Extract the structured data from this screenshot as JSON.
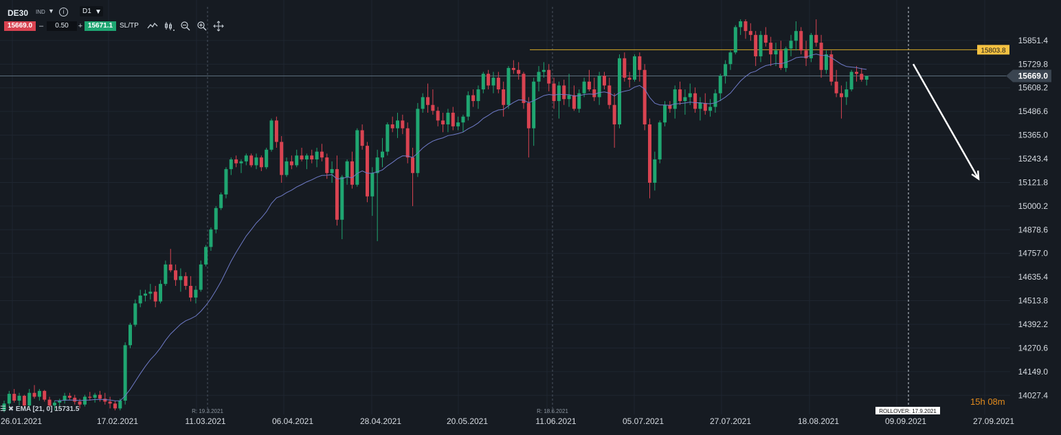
{
  "toolbar": {
    "symbol": "DE30",
    "symbol_type": "IND",
    "info_icon": "info-icon",
    "timeframe": "D1",
    "sell_price": "15669.0",
    "minus": "–",
    "spread": "0.50",
    "plus": "+",
    "buy_price": "15671.1",
    "sltp": "SL/TP",
    "tools": [
      "chart-type-icon",
      "bar-style-icon",
      "zoom-out-icon",
      "zoom-in-icon",
      "crosshair-move-icon"
    ]
  },
  "indicator": {
    "label": "EMA [21, 0] 15731.5",
    "icons": [
      "list-icon",
      "close-icon"
    ]
  },
  "timer": {
    "hours": "15h",
    "minutes": "08m"
  },
  "colors": {
    "bg": "#161b22",
    "up": "#1fa671",
    "down": "#d94351",
    "ema": "#6f7bc8",
    "resistance": "#d9ac2a",
    "price_line": "#5b6e7c"
  },
  "chart_data": {
    "type": "candlestick",
    "symbol": "DE30",
    "timeframe": "D1",
    "ylim": [
      13940,
      16010
    ],
    "y_ticks": [
      "15851.4",
      "15729.8",
      "15608.2",
      "15486.6",
      "15365.0",
      "15243.4",
      "15121.8",
      "15000.2",
      "14878.6",
      "14757.0",
      "14635.4",
      "14513.8",
      "14392.2",
      "14270.6",
      "14149.0",
      "14027.4"
    ],
    "x_ticks": [
      "26.01.2021",
      "17.02.2021",
      "11.03.2021",
      "06.04.2021",
      "28.04.2021",
      "20.05.2021",
      "11.06.2021",
      "05.07.2021",
      "27.07.2021",
      "18.08.2021",
      "09.09.2021",
      "27.09.2021"
    ],
    "current_price": "15669.0",
    "resistance_level": "15803.8",
    "vertical_markers": [
      {
        "label": "R: 19.3.2021",
        "style": "dashed"
      },
      {
        "label": "R: 18.6.2021",
        "style": "dashed"
      },
      {
        "label": "ROLLOVER: 17.9.2021",
        "style": "dashed-white"
      }
    ],
    "annotation": {
      "type": "arrow",
      "direction": "down",
      "from_price": 15730,
      "to_price": 15140
    },
    "ema_period": 21,
    "ema_last": 15731.5,
    "candles": [
      [
        13950,
        14000,
        13940,
        13985
      ],
      [
        13985,
        14050,
        13970,
        14035
      ],
      [
        14035,
        14060,
        13990,
        14000
      ],
      [
        14000,
        14040,
        13975,
        14025
      ],
      [
        14025,
        14030,
        13960,
        13975
      ],
      [
        13975,
        14060,
        13965,
        14040
      ],
      [
        14040,
        14080,
        14010,
        14020
      ],
      [
        14020,
        14060,
        14000,
        14050
      ],
      [
        14050,
        14055,
        13995,
        14005
      ],
      [
        14005,
        14020,
        13960,
        13975
      ],
      [
        13975,
        14000,
        13950,
        13990
      ],
      [
        13990,
        14010,
        13970,
        14000
      ],
      [
        14000,
        14040,
        13985,
        14025
      ],
      [
        14025,
        14040,
        14005,
        14015
      ],
      [
        14015,
        14030,
        13980,
        13995
      ],
      [
        13995,
        14010,
        13960,
        13980
      ],
      [
        13980,
        14030,
        13970,
        14020
      ],
      [
        14020,
        14045,
        14000,
        14015
      ],
      [
        14015,
        14040,
        13990,
        14030
      ],
      [
        14030,
        14050,
        13995,
        14010
      ],
      [
        14010,
        14040,
        13980,
        13995
      ],
      [
        13995,
        14020,
        13960,
        13985
      ],
      [
        13985,
        14000,
        13950,
        13960
      ],
      [
        13960,
        14010,
        13950,
        14000
      ],
      [
        14000,
        14300,
        13980,
        14285
      ],
      [
        14285,
        14400,
        14270,
        14390
      ],
      [
        14390,
        14520,
        14380,
        14500
      ],
      [
        14500,
        14570,
        14480,
        14540
      ],
      [
        14540,
        14570,
        14510,
        14550
      ],
      [
        14550,
        14600,
        14520,
        14560
      ],
      [
        14560,
        14590,
        14480,
        14510
      ],
      [
        14510,
        14620,
        14500,
        14600
      ],
      [
        14600,
        14720,
        14590,
        14700
      ],
      [
        14700,
        14780,
        14660,
        14670
      ],
      [
        14670,
        14700,
        14590,
        14620
      ],
      [
        14620,
        14680,
        14560,
        14640
      ],
      [
        14640,
        14660,
        14570,
        14590
      ],
      [
        14590,
        14640,
        14510,
        14530
      ],
      [
        14530,
        14590,
        14500,
        14570
      ],
      [
        14570,
        14720,
        14560,
        14700
      ],
      [
        14700,
        14800,
        14690,
        14790
      ],
      [
        14790,
        14890,
        14770,
        14880
      ],
      [
        14880,
        15000,
        14860,
        14990
      ],
      [
        14990,
        15070,
        14980,
        15060
      ],
      [
        15060,
        15200,
        15040,
        15190
      ],
      [
        15190,
        15250,
        15160,
        15240
      ],
      [
        15240,
        15260,
        15200,
        15220
      ],
      [
        15220,
        15240,
        15170,
        15230
      ],
      [
        15230,
        15270,
        15210,
        15260
      ],
      [
        15260,
        15270,
        15200,
        15210
      ],
      [
        15210,
        15270,
        15190,
        15250
      ],
      [
        15250,
        15260,
        15180,
        15200
      ],
      [
        15200,
        15300,
        15190,
        15290
      ],
      [
        15290,
        15450,
        15280,
        15440
      ],
      [
        15440,
        15460,
        15300,
        15330
      ],
      [
        15330,
        15360,
        15120,
        15160
      ],
      [
        15160,
        15250,
        15150,
        15230
      ],
      [
        15230,
        15260,
        15190,
        15210
      ],
      [
        15210,
        15290,
        15200,
        15260
      ],
      [
        15260,
        15300,
        15230,
        15240
      ],
      [
        15240,
        15270,
        15190,
        15260
      ],
      [
        15260,
        15290,
        15220,
        15240
      ],
      [
        15240,
        15300,
        15200,
        15280
      ],
      [
        15280,
        15320,
        15230,
        15250
      ],
      [
        15250,
        15270,
        15140,
        15170
      ],
      [
        15170,
        15230,
        15120,
        15190
      ],
      [
        15190,
        15260,
        14900,
        14930
      ],
      [
        14930,
        15160,
        14830,
        15150
      ],
      [
        15150,
        15240,
        15110,
        15230
      ],
      [
        15230,
        15280,
        15090,
        15110
      ],
      [
        15110,
        15400,
        15100,
        15390
      ],
      [
        15390,
        15420,
        15290,
        15310
      ],
      [
        15310,
        15330,
        15020,
        15050
      ],
      [
        15050,
        15200,
        14950,
        15170
      ],
      [
        15170,
        15290,
        14820,
        15250
      ],
      [
        15250,
        15350,
        15200,
        15280
      ],
      [
        15280,
        15430,
        15260,
        15420
      ],
      [
        15420,
        15460,
        15380,
        15400
      ],
      [
        15400,
        15480,
        15350,
        15440
      ],
      [
        15440,
        15470,
        15370,
        15400
      ],
      [
        15400,
        15430,
        15220,
        15250
      ],
      [
        15250,
        15300,
        15000,
        15170
      ],
      [
        15170,
        15530,
        15150,
        15500
      ],
      [
        15500,
        15580,
        15480,
        15560
      ],
      [
        15560,
        15630,
        15480,
        15520
      ],
      [
        15520,
        15600,
        15470,
        15490
      ],
      [
        15490,
        15510,
        15410,
        15440
      ],
      [
        15440,
        15480,
        15380,
        15420
      ],
      [
        15420,
        15500,
        15380,
        15480
      ],
      [
        15480,
        15510,
        15390,
        15410
      ],
      [
        15410,
        15460,
        15390,
        15430
      ],
      [
        15430,
        15470,
        15380,
        15460
      ],
      [
        15460,
        15590,
        15440,
        15570
      ],
      [
        15570,
        15600,
        15510,
        15540
      ],
      [
        15540,
        15620,
        15500,
        15600
      ],
      [
        15600,
        15690,
        15580,
        15680
      ],
      [
        15680,
        15700,
        15600,
        15620
      ],
      [
        15620,
        15690,
        15580,
        15660
      ],
      [
        15660,
        15690,
        15580,
        15600
      ],
      [
        15600,
        15640,
        15460,
        15520
      ],
      [
        15520,
        15720,
        15500,
        15710
      ],
      [
        15710,
        15750,
        15680,
        15700
      ],
      [
        15700,
        15740,
        15650,
        15680
      ],
      [
        15680,
        15690,
        15500,
        15530
      ],
      [
        15530,
        15560,
        15250,
        15400
      ],
      [
        15400,
        15660,
        15310,
        15640
      ],
      [
        15640,
        15720,
        15590,
        15690
      ],
      [
        15690,
        15740,
        15660,
        15700
      ],
      [
        15700,
        15730,
        15590,
        15630
      ],
      [
        15630,
        15660,
        15500,
        15540
      ],
      [
        15540,
        15640,
        15450,
        15620
      ],
      [
        15620,
        15650,
        15520,
        15550
      ],
      [
        15550,
        15680,
        15510,
        15570
      ],
      [
        15570,
        15620,
        15490,
        15500
      ],
      [
        15500,
        15600,
        15480,
        15580
      ],
      [
        15580,
        15660,
        15560,
        15640
      ],
      [
        15640,
        15700,
        15590,
        15600
      ],
      [
        15600,
        15660,
        15540,
        15560
      ],
      [
        15560,
        15690,
        15520,
        15670
      ],
      [
        15670,
        15690,
        15600,
        15620
      ],
      [
        15620,
        15660,
        15500,
        15520
      ],
      [
        15520,
        15580,
        15300,
        15420
      ],
      [
        15420,
        15780,
        15400,
        15760
      ],
      [
        15760,
        15790,
        15640,
        15660
      ],
      [
        15660,
        15690,
        15610,
        15650
      ],
      [
        15650,
        15780,
        15640,
        15770
      ],
      [
        15770,
        15790,
        15640,
        15700
      ],
      [
        15700,
        15730,
        15390,
        15420
      ],
      [
        15420,
        15450,
        15040,
        15120
      ],
      [
        15120,
        15280,
        15080,
        15240
      ],
      [
        15240,
        15440,
        15220,
        15430
      ],
      [
        15430,
        15540,
        15410,
        15520
      ],
      [
        15520,
        15540,
        15480,
        15500
      ],
      [
        15500,
        15620,
        15450,
        15600
      ],
      [
        15600,
        15640,
        15520,
        15540
      ],
      [
        15540,
        15600,
        15470,
        15560
      ],
      [
        15560,
        15630,
        15520,
        15580
      ],
      [
        15580,
        15610,
        15480,
        15500
      ],
      [
        15500,
        15560,
        15440,
        15530
      ],
      [
        15530,
        15580,
        15470,
        15490
      ],
      [
        15490,
        15550,
        15460,
        15510
      ],
      [
        15510,
        15600,
        15480,
        15580
      ],
      [
        15580,
        15680,
        15540,
        15670
      ],
      [
        15670,
        15750,
        15630,
        15730
      ],
      [
        15730,
        15800,
        15700,
        15790
      ],
      [
        15790,
        15930,
        15780,
        15920
      ],
      [
        15920,
        15960,
        15880,
        15950
      ],
      [
        15950,
        15960,
        15860,
        15900
      ],
      [
        15900,
        15940,
        15850,
        15880
      ],
      [
        15880,
        15900,
        15720,
        15770
      ],
      [
        15770,
        15900,
        15740,
        15880
      ],
      [
        15880,
        15920,
        15820,
        15840
      ],
      [
        15840,
        15870,
        15720,
        15780
      ],
      [
        15780,
        15840,
        15720,
        15800
      ],
      [
        15800,
        15850,
        15700,
        15710
      ],
      [
        15710,
        15820,
        15690,
        15810
      ],
      [
        15810,
        15880,
        15770,
        15850
      ],
      [
        15850,
        15950,
        15800,
        15900
      ],
      [
        15900,
        15920,
        15780,
        15800
      ],
      [
        15800,
        15850,
        15720,
        15760
      ],
      [
        15760,
        15890,
        15740,
        15880
      ],
      [
        15880,
        15960,
        15820,
        15840
      ],
      [
        15840,
        15880,
        15660,
        15700
      ],
      [
        15700,
        15800,
        15680,
        15780
      ],
      [
        15780,
        15800,
        15620,
        15640
      ],
      [
        15640,
        15700,
        15560,
        15580
      ],
      [
        15580,
        15620,
        15450,
        15560
      ],
      [
        15560,
        15640,
        15520,
        15600
      ],
      [
        15600,
        15700,
        15590,
        15690
      ],
      [
        15690,
        15720,
        15640,
        15680
      ],
      [
        15680,
        15710,
        15640,
        15650
      ],
      [
        15650,
        15670,
        15620,
        15669
      ]
    ]
  }
}
